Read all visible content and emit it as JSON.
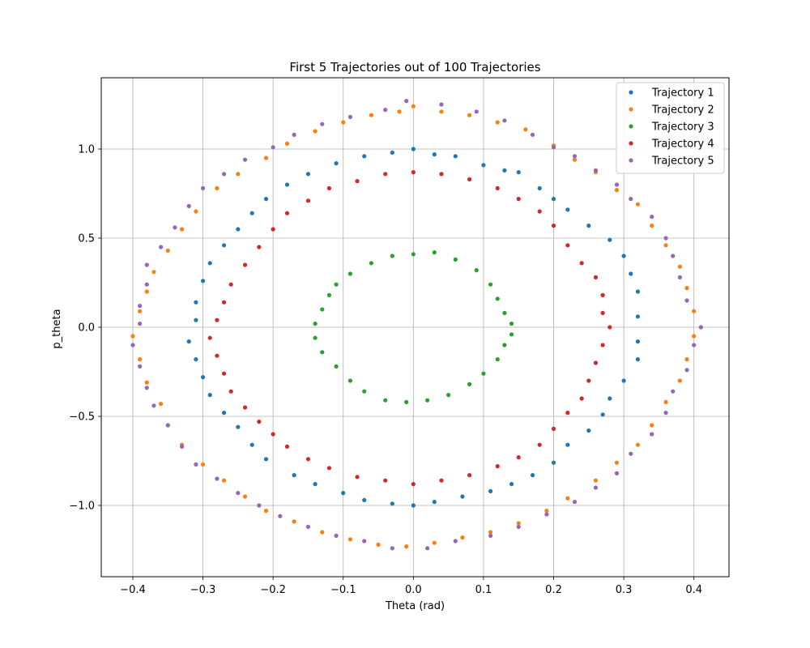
{
  "chart_data": {
    "type": "scatter",
    "title": "First 5 Trajectories out of 100 Trajectories",
    "xlabel": "Theta (rad)",
    "ylabel": "p_theta",
    "xlim": [
      -0.445,
      0.45
    ],
    "ylim": [
      -1.4,
      1.4
    ],
    "xticks": [
      -0.4,
      -0.3,
      -0.2,
      -0.1,
      0.0,
      0.1,
      0.2,
      0.3,
      0.4
    ],
    "xtick_labels": [
      "−0.4",
      "−0.3",
      "−0.2",
      "−0.1",
      "0.0",
      "0.1",
      "0.2",
      "0.3",
      "0.4"
    ],
    "yticks": [
      1.0,
      0.5,
      0.0,
      -0.5,
      -1.0
    ],
    "ytick_labels": [
      "1.0",
      "0.5",
      "0.0",
      "−0.5",
      "−1.0"
    ],
    "grid": true,
    "legend_position": "top-right",
    "series": [
      {
        "name": "Trajectory 1",
        "color": "#1f77b4",
        "points": [
          [
            0.0,
            1.0
          ],
          [
            0.03,
            0.97
          ],
          [
            0.06,
            0.96
          ],
          [
            0.1,
            0.91
          ],
          [
            0.13,
            0.88
          ],
          [
            0.15,
            0.87
          ],
          [
            0.18,
            0.78
          ],
          [
            0.2,
            0.72
          ],
          [
            0.22,
            0.66
          ],
          [
            0.25,
            0.57
          ],
          [
            0.28,
            0.49
          ],
          [
            0.3,
            0.4
          ],
          [
            0.31,
            0.3
          ],
          [
            0.32,
            0.2
          ],
          [
            0.32,
            0.06
          ],
          [
            0.32,
            -0.08
          ],
          [
            0.32,
            -0.18
          ],
          [
            0.3,
            -0.3
          ],
          [
            0.28,
            -0.4
          ],
          [
            0.27,
            -0.49
          ],
          [
            0.25,
            -0.58
          ],
          [
            0.22,
            -0.66
          ],
          [
            0.2,
            -0.76
          ],
          [
            0.17,
            -0.83
          ],
          [
            0.14,
            -0.88
          ],
          [
            0.11,
            -0.92
          ],
          [
            0.07,
            -0.95
          ],
          [
            0.03,
            -0.98
          ],
          [
            0.0,
            -1.0
          ],
          [
            -0.03,
            -0.99
          ],
          [
            -0.07,
            -0.97
          ],
          [
            -0.1,
            -0.93
          ],
          [
            -0.14,
            -0.88
          ],
          [
            -0.17,
            -0.83
          ],
          [
            -0.21,
            -0.74
          ],
          [
            -0.23,
            -0.66
          ],
          [
            -0.25,
            -0.56
          ],
          [
            -0.27,
            -0.48
          ],
          [
            -0.29,
            -0.38
          ],
          [
            -0.3,
            -0.28
          ],
          [
            -0.31,
            -0.18
          ],
          [
            -0.32,
            -0.08
          ],
          [
            -0.31,
            0.04
          ],
          [
            -0.31,
            0.14
          ],
          [
            -0.3,
            0.26
          ],
          [
            -0.29,
            0.36
          ],
          [
            -0.27,
            0.46
          ],
          [
            -0.25,
            0.55
          ],
          [
            -0.23,
            0.64
          ],
          [
            -0.21,
            0.72
          ],
          [
            -0.18,
            0.8
          ],
          [
            -0.15,
            0.86
          ],
          [
            -0.11,
            0.92
          ],
          [
            -0.07,
            0.96
          ],
          [
            -0.03,
            0.98
          ]
        ]
      },
      {
        "name": "Trajectory 2",
        "color": "#ff7f0e",
        "points": [
          [
            0.0,
            1.24
          ],
          [
            0.04,
            1.21
          ],
          [
            0.08,
            1.19
          ],
          [
            0.12,
            1.15
          ],
          [
            0.16,
            1.11
          ],
          [
            0.2,
            1.02
          ],
          [
            0.23,
            0.94
          ],
          [
            0.26,
            0.87
          ],
          [
            0.29,
            0.77
          ],
          [
            0.32,
            0.69
          ],
          [
            0.34,
            0.57
          ],
          [
            0.36,
            0.46
          ],
          [
            0.38,
            0.34
          ],
          [
            0.39,
            0.22
          ],
          [
            0.4,
            0.09
          ],
          [
            0.4,
            -0.05
          ],
          [
            0.39,
            -0.18
          ],
          [
            0.38,
            -0.3
          ],
          [
            0.36,
            -0.42
          ],
          [
            0.34,
            -0.55
          ],
          [
            0.32,
            -0.66
          ],
          [
            0.29,
            -0.76
          ],
          [
            0.26,
            -0.86
          ],
          [
            0.22,
            -0.96
          ],
          [
            0.19,
            -1.03
          ],
          [
            0.15,
            -1.1
          ],
          [
            0.11,
            -1.15
          ],
          [
            0.07,
            -1.18
          ],
          [
            0.03,
            -1.21
          ],
          [
            -0.01,
            -1.23
          ],
          [
            -0.05,
            -1.22
          ],
          [
            -0.09,
            -1.19
          ],
          [
            -0.13,
            -1.15
          ],
          [
            -0.17,
            -1.09
          ],
          [
            -0.21,
            -1.03
          ],
          [
            -0.24,
            -0.95
          ],
          [
            -0.27,
            -0.86
          ],
          [
            -0.3,
            -0.77
          ],
          [
            -0.33,
            -0.66
          ],
          [
            -0.35,
            -0.55
          ],
          [
            -0.36,
            -0.43
          ],
          [
            -0.38,
            -0.31
          ],
          [
            -0.39,
            -0.18
          ],
          [
            -0.4,
            -0.05
          ],
          [
            -0.39,
            0.09
          ],
          [
            -0.38,
            0.2
          ],
          [
            -0.37,
            0.31
          ],
          [
            -0.35,
            0.43
          ],
          [
            -0.33,
            0.55
          ],
          [
            -0.31,
            0.65
          ],
          [
            -0.28,
            0.78
          ],
          [
            -0.25,
            0.86
          ],
          [
            -0.21,
            0.95
          ],
          [
            -0.18,
            1.03
          ],
          [
            -0.14,
            1.1
          ],
          [
            -0.1,
            1.15
          ],
          [
            -0.06,
            1.19
          ],
          [
            -0.02,
            1.21
          ]
        ]
      },
      {
        "name": "Trajectory 3",
        "color": "#2ca02c",
        "points": [
          [
            0.0,
            0.41
          ],
          [
            0.03,
            0.42
          ],
          [
            0.06,
            0.38
          ],
          [
            0.09,
            0.32
          ],
          [
            0.11,
            0.24
          ],
          [
            0.12,
            0.16
          ],
          [
            0.13,
            0.08
          ],
          [
            0.14,
            0.02
          ],
          [
            0.14,
            -0.04
          ],
          [
            0.13,
            -0.1
          ],
          [
            0.12,
            -0.18
          ],
          [
            0.1,
            -0.26
          ],
          [
            0.08,
            -0.32
          ],
          [
            0.05,
            -0.38
          ],
          [
            0.02,
            -0.41
          ],
          [
            -0.01,
            -0.42
          ],
          [
            -0.04,
            -0.41
          ],
          [
            -0.07,
            -0.36
          ],
          [
            -0.09,
            -0.3
          ],
          [
            -0.11,
            -0.22
          ],
          [
            -0.13,
            -0.14
          ],
          [
            -0.14,
            -0.06
          ],
          [
            -0.14,
            0.02
          ],
          [
            -0.13,
            0.1
          ],
          [
            -0.12,
            0.18
          ],
          [
            -0.11,
            0.24
          ],
          [
            -0.09,
            0.3
          ],
          [
            -0.06,
            0.36
          ],
          [
            -0.03,
            0.4
          ]
        ]
      },
      {
        "name": "Trajectory 4",
        "color": "#d62728",
        "points": [
          [
            0.0,
            0.87
          ],
          [
            0.04,
            0.86
          ],
          [
            0.08,
            0.83
          ],
          [
            0.12,
            0.78
          ],
          [
            0.15,
            0.72
          ],
          [
            0.18,
            0.65
          ],
          [
            0.2,
            0.57
          ],
          [
            0.22,
            0.46
          ],
          [
            0.24,
            0.36
          ],
          [
            0.26,
            0.28
          ],
          [
            0.27,
            0.18
          ],
          [
            0.27,
            0.08
          ],
          [
            0.28,
            0.0
          ],
          [
            0.27,
            -0.1
          ],
          [
            0.26,
            -0.2
          ],
          [
            0.25,
            -0.3
          ],
          [
            0.24,
            -0.4
          ],
          [
            0.22,
            -0.48
          ],
          [
            0.2,
            -0.57
          ],
          [
            0.18,
            -0.66
          ],
          [
            0.15,
            -0.73
          ],
          [
            0.12,
            -0.78
          ],
          [
            0.08,
            -0.83
          ],
          [
            0.04,
            -0.86
          ],
          [
            0.0,
            -0.88
          ],
          [
            -0.04,
            -0.86
          ],
          [
            -0.08,
            -0.84
          ],
          [
            -0.12,
            -0.79
          ],
          [
            -0.15,
            -0.74
          ],
          [
            -0.18,
            -0.67
          ],
          [
            -0.2,
            -0.6
          ],
          [
            -0.22,
            -0.53
          ],
          [
            -0.24,
            -0.45
          ],
          [
            -0.26,
            -0.36
          ],
          [
            -0.27,
            -0.26
          ],
          [
            -0.28,
            -0.16
          ],
          [
            -0.29,
            -0.06
          ],
          [
            -0.28,
            0.04
          ],
          [
            -0.27,
            0.14
          ],
          [
            -0.26,
            0.24
          ],
          [
            -0.24,
            0.35
          ],
          [
            -0.22,
            0.45
          ],
          [
            -0.2,
            0.55
          ],
          [
            -0.18,
            0.64
          ],
          [
            -0.15,
            0.71
          ],
          [
            -0.12,
            0.78
          ],
          [
            -0.08,
            0.82
          ],
          [
            -0.04,
            0.86
          ]
        ]
      },
      {
        "name": "Trajectory 5",
        "color": "#9467bd",
        "points": [
          [
            -0.01,
            1.27
          ],
          [
            0.04,
            1.25
          ],
          [
            0.09,
            1.21
          ],
          [
            0.13,
            1.16
          ],
          [
            0.17,
            1.08
          ],
          [
            0.2,
            1.01
          ],
          [
            0.23,
            0.96
          ],
          [
            0.26,
            0.88
          ],
          [
            0.29,
            0.8
          ],
          [
            0.31,
            0.72
          ],
          [
            0.34,
            0.62
          ],
          [
            0.36,
            0.5
          ],
          [
            0.37,
            0.4
          ],
          [
            0.38,
            0.28
          ],
          [
            0.39,
            0.15
          ],
          [
            0.41,
            0.0
          ],
          [
            0.4,
            -0.1
          ],
          [
            0.39,
            -0.24
          ],
          [
            0.37,
            -0.36
          ],
          [
            0.36,
            -0.48
          ],
          [
            0.34,
            -0.6
          ],
          [
            0.31,
            -0.71
          ],
          [
            0.29,
            -0.82
          ],
          [
            0.26,
            -0.9
          ],
          [
            0.23,
            -0.98
          ],
          [
            0.19,
            -1.05
          ],
          [
            0.15,
            -1.12
          ],
          [
            0.11,
            -1.17
          ],
          [
            0.06,
            -1.2
          ],
          [
            0.02,
            -1.24
          ],
          [
            -0.03,
            -1.24
          ],
          [
            -0.07,
            -1.2
          ],
          [
            -0.11,
            -1.17
          ],
          [
            -0.15,
            -1.12
          ],
          [
            -0.19,
            -1.06
          ],
          [
            -0.22,
            -1.0
          ],
          [
            -0.25,
            -0.93
          ],
          [
            -0.28,
            -0.85
          ],
          [
            -0.31,
            -0.77
          ],
          [
            -0.33,
            -0.67
          ],
          [
            -0.35,
            -0.55
          ],
          [
            -0.37,
            -0.44
          ],
          [
            -0.38,
            -0.34
          ],
          [
            -0.39,
            -0.22
          ],
          [
            -0.4,
            -0.1
          ],
          [
            -0.39,
            0.02
          ],
          [
            -0.39,
            0.12
          ],
          [
            -0.38,
            0.24
          ],
          [
            -0.38,
            0.35
          ],
          [
            -0.36,
            0.45
          ],
          [
            -0.34,
            0.56
          ],
          [
            -0.32,
            0.68
          ],
          [
            -0.3,
            0.78
          ],
          [
            -0.27,
            0.86
          ],
          [
            -0.24,
            0.94
          ],
          [
            -0.2,
            1.01
          ],
          [
            -0.17,
            1.08
          ],
          [
            -0.13,
            1.14
          ],
          [
            -0.09,
            1.18
          ],
          [
            -0.04,
            1.22
          ]
        ]
      }
    ]
  }
}
